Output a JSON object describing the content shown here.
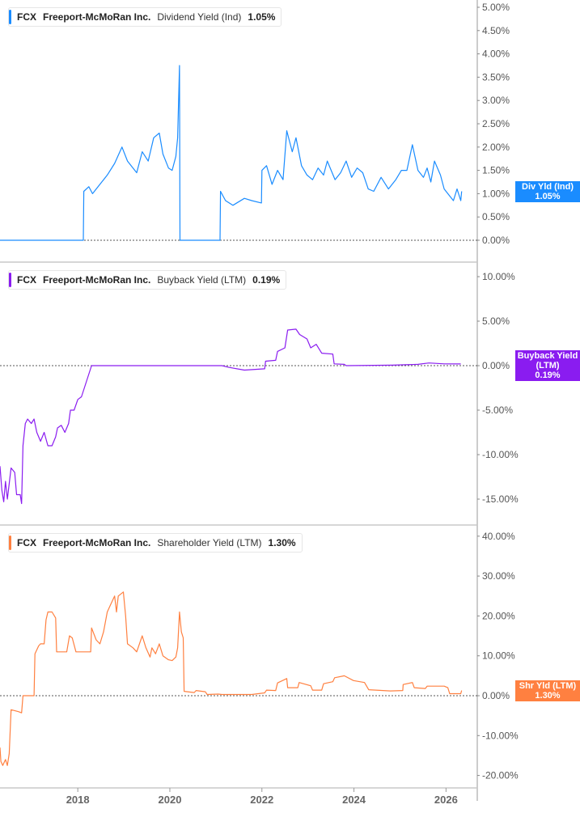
{
  "colors": {
    "dividend": "#1a8cff",
    "buyback": "#8a1cf0",
    "shareholder": "#ff8040",
    "axis": "#bbbbbb",
    "tick_text": "#555555"
  },
  "chart_data": [
    {
      "type": "line",
      "legend": {
        "ticker": "FCX",
        "company": "Freeport-McMoRan Inc.",
        "metric": "Dividend Yield (Ind)",
        "value": "1.05%"
      },
      "badge": {
        "label": "Div Yld (Ind)",
        "value": "1.05%"
      },
      "ylim": [
        -0.5,
        5.1
      ],
      "yticks": [
        "5.00%",
        "4.50%",
        "4.00%",
        "3.50%",
        "3.00%",
        "2.50%",
        "2.00%",
        "1.50%",
        "1.00%",
        "0.50%",
        "0.00%"
      ],
      "ytick_values": [
        5,
        4.5,
        4,
        3.5,
        3,
        2.5,
        2,
        1.5,
        1,
        0.5,
        0
      ],
      "series": [
        {
          "points": [
            [
              2016.31,
              0
            ],
            [
              2018.12,
              0
            ],
            [
              2018.13,
              1.05
            ],
            [
              2018.24,
              1.15
            ],
            [
              2018.32,
              1.0
            ],
            [
              2018.48,
              1.2
            ],
            [
              2018.64,
              1.4
            ],
            [
              2018.8,
              1.65
            ],
            [
              2018.96,
              2.0
            ],
            [
              2019.08,
              1.7
            ],
            [
              2019.2,
              1.55
            ],
            [
              2019.28,
              1.45
            ],
            [
              2019.4,
              1.9
            ],
            [
              2019.53,
              1.7
            ],
            [
              2019.65,
              2.2
            ],
            [
              2019.77,
              2.3
            ],
            [
              2019.85,
              1.85
            ],
            [
              2019.97,
              1.55
            ],
            [
              2020.05,
              1.5
            ],
            [
              2020.13,
              1.8
            ],
            [
              2020.17,
              2.2
            ],
            [
              2020.21,
              3.75
            ],
            [
              2020.22,
              0
            ],
            [
              2021.09,
              0
            ],
            [
              2021.1,
              1.05
            ],
            [
              2021.21,
              0.85
            ],
            [
              2021.37,
              0.75
            ],
            [
              2021.62,
              0.9
            ],
            [
              2021.78,
              0.85
            ],
            [
              2021.99,
              0.8
            ],
            [
              2022.0,
              1.5
            ],
            [
              2022.1,
              1.6
            ],
            [
              2022.22,
              1.2
            ],
            [
              2022.34,
              1.5
            ],
            [
              2022.46,
              1.3
            ],
            [
              2022.54,
              2.35
            ],
            [
              2022.66,
              1.9
            ],
            [
              2022.74,
              2.2
            ],
            [
              2022.86,
              1.6
            ],
            [
              2022.98,
              1.4
            ],
            [
              2023.1,
              1.3
            ],
            [
              2023.22,
              1.55
            ],
            [
              2023.34,
              1.4
            ],
            [
              2023.42,
              1.7
            ],
            [
              2023.59,
              1.3
            ],
            [
              2023.71,
              1.45
            ],
            [
              2023.83,
              1.7
            ],
            [
              2023.95,
              1.35
            ],
            [
              2024.07,
              1.55
            ],
            [
              2024.19,
              1.45
            ],
            [
              2024.31,
              1.1
            ],
            [
              2024.43,
              1.05
            ],
            [
              2024.59,
              1.35
            ],
            [
              2024.75,
              1.1
            ],
            [
              2024.91,
              1.3
            ],
            [
              2025.03,
              1.5
            ],
            [
              2025.15,
              1.5
            ],
            [
              2025.27,
              2.05
            ],
            [
              2025.39,
              1.5
            ],
            [
              2025.51,
              1.35
            ],
            [
              2025.59,
              1.55
            ],
            [
              2025.67,
              1.25
            ],
            [
              2025.75,
              1.7
            ],
            [
              2025.88,
              1.4
            ],
            [
              2025.96,
              1.1
            ],
            [
              2026.08,
              0.95
            ],
            [
              2026.16,
              0.85
            ],
            [
              2026.24,
              1.1
            ],
            [
              2026.32,
              0.85
            ],
            [
              2026.34,
              1.05
            ]
          ]
        }
      ]
    },
    {
      "type": "line",
      "legend": {
        "ticker": "FCX",
        "company": "Freeport-McMoRan Inc.",
        "metric": "Buyback Yield (LTM)",
        "value": "0.19%"
      },
      "badge": {
        "label": "Buyback Yield (LTM)",
        "value": "0.19%"
      },
      "ylim": [
        -17,
        11
      ],
      "yticks": [
        "10.00%",
        "5.00%",
        "0.00%",
        "-5.00%",
        "-10.00%",
        "-15.00%"
      ],
      "ytick_values": [
        10,
        5,
        0,
        -5,
        -10,
        -15
      ],
      "series": [
        {
          "points": [
            [
              2016.31,
              -11.3
            ],
            [
              2016.35,
              -14
            ],
            [
              2016.39,
              -15.3
            ],
            [
              2016.43,
              -13
            ],
            [
              2016.47,
              -15
            ],
            [
              2016.55,
              -11.5
            ],
            [
              2016.63,
              -12
            ],
            [
              2016.67,
              -14.5
            ],
            [
              2016.75,
              -14.5
            ],
            [
              2016.78,
              -15.5
            ],
            [
              2016.81,
              -9
            ],
            [
              2016.86,
              -6.5
            ],
            [
              2016.91,
              -6
            ],
            [
              2016.99,
              -6.5
            ],
            [
              2017.05,
              -6
            ],
            [
              2017.11,
              -7.5
            ],
            [
              2017.19,
              -8.5
            ],
            [
              2017.27,
              -7.5
            ],
            [
              2017.35,
              -9
            ],
            [
              2017.44,
              -9
            ],
            [
              2017.52,
              -8
            ],
            [
              2017.56,
              -7
            ],
            [
              2017.64,
              -6.7
            ],
            [
              2017.72,
              -7.5
            ],
            [
              2017.8,
              -6.5
            ],
            [
              2017.84,
              -5
            ],
            [
              2017.92,
              -5
            ],
            [
              2018.0,
              -3.8
            ],
            [
              2018.08,
              -3.5
            ],
            [
              2018.3,
              0
            ],
            [
              2021.13,
              0
            ],
            [
              2021.29,
              -0.2
            ],
            [
              2021.62,
              -0.5
            ],
            [
              2022.06,
              -0.35
            ],
            [
              2022.08,
              0.5
            ],
            [
              2022.3,
              0.6
            ],
            [
              2022.34,
              1.6
            ],
            [
              2022.5,
              2
            ],
            [
              2022.56,
              4
            ],
            [
              2022.74,
              4.1
            ],
            [
              2022.82,
              3.5
            ],
            [
              2022.98,
              3.0
            ],
            [
              2023.06,
              2.0
            ],
            [
              2023.18,
              2.4
            ],
            [
              2023.3,
              1.4
            ],
            [
              2023.54,
              1.3
            ],
            [
              2023.57,
              0.2
            ],
            [
              2023.79,
              0.15
            ],
            [
              2023.83,
              0
            ],
            [
              2024.83,
              0.05
            ],
            [
              2025.39,
              0.15
            ],
            [
              2025.63,
              0.3
            ],
            [
              2025.96,
              0.2
            ],
            [
              2026.32,
              0.19
            ]
          ]
        }
      ]
    },
    {
      "type": "line",
      "legend": {
        "ticker": "FCX",
        "company": "Freeport-McMoRan Inc.",
        "metric": "Shareholder Yield (LTM)",
        "value": "1.30%"
      },
      "badge": {
        "label": "Shr Yld (LTM)",
        "value": "1.30%"
      },
      "ylim": [
        -23,
        42
      ],
      "yticks": [
        "40.00%",
        "30.00%",
        "20.00%",
        "10.00%",
        "0.00%",
        "-10.00%",
        "-20.00%"
      ],
      "ytick_values": [
        40,
        30,
        20,
        10,
        0,
        -10,
        -20
      ],
      "xticks": [
        "2018",
        "2020",
        "2022",
        "2024",
        "2026"
      ],
      "xtick_values": [
        2018,
        2020,
        2022,
        2024,
        2026
      ],
      "series": [
        {
          "points": [
            [
              2016.31,
              -13
            ],
            [
              2016.33,
              -16.5
            ],
            [
              2016.37,
              -17.5
            ],
            [
              2016.43,
              -16
            ],
            [
              2016.47,
              -17.5
            ],
            [
              2016.51,
              -14.5
            ],
            [
              2016.55,
              -3.5
            ],
            [
              2016.71,
              -4
            ],
            [
              2016.78,
              -4.3
            ],
            [
              2016.81,
              0
            ],
            [
              2017.05,
              0
            ],
            [
              2017.07,
              10.5
            ],
            [
              2017.15,
              12.5
            ],
            [
              2017.19,
              13
            ],
            [
              2017.27,
              13
            ],
            [
              2017.31,
              19
            ],
            [
              2017.35,
              21
            ],
            [
              2017.44,
              21
            ],
            [
              2017.52,
              19.5
            ],
            [
              2017.54,
              11
            ],
            [
              2017.64,
              11
            ],
            [
              2017.76,
              11
            ],
            [
              2017.82,
              15
            ],
            [
              2017.88,
              14.5
            ],
            [
              2017.96,
              11
            ],
            [
              2018.08,
              11
            ],
            [
              2018.2,
              11
            ],
            [
              2018.28,
              11
            ],
            [
              2018.3,
              17
            ],
            [
              2018.4,
              14
            ],
            [
              2018.48,
              13
            ],
            [
              2018.56,
              16
            ],
            [
              2018.64,
              21
            ],
            [
              2018.72,
              23
            ],
            [
              2018.8,
              25
            ],
            [
              2018.84,
              21
            ],
            [
              2018.88,
              25
            ],
            [
              2018.99,
              26
            ],
            [
              2019.04,
              20
            ],
            [
              2019.08,
              13
            ],
            [
              2019.2,
              12
            ],
            [
              2019.28,
              11
            ],
            [
              2019.4,
              15
            ],
            [
              2019.48,
              12
            ],
            [
              2019.57,
              9.7
            ],
            [
              2019.61,
              12
            ],
            [
              2019.69,
              10.5
            ],
            [
              2019.77,
              13
            ],
            [
              2019.85,
              10
            ],
            [
              2019.97,
              9
            ],
            [
              2020.05,
              8.8
            ],
            [
              2020.13,
              9.7
            ],
            [
              2020.17,
              12
            ],
            [
              2020.21,
              21
            ],
            [
              2020.25,
              16
            ],
            [
              2020.29,
              14.5
            ],
            [
              2020.31,
              1.1
            ],
            [
              2020.53,
              0.8
            ],
            [
              2020.57,
              1.3
            ],
            [
              2020.77,
              1
            ],
            [
              2020.81,
              0.3
            ],
            [
              2021.05,
              0.4
            ],
            [
              2021.13,
              0.3
            ],
            [
              2021.78,
              0.3
            ],
            [
              2022.06,
              0.7
            ],
            [
              2022.1,
              1.4
            ],
            [
              2022.3,
              1.3
            ],
            [
              2022.34,
              3.2
            ],
            [
              2022.54,
              4.3
            ],
            [
              2022.56,
              2
            ],
            [
              2022.78,
              2
            ],
            [
              2022.81,
              3.3
            ],
            [
              2023.06,
              2.5
            ],
            [
              2023.1,
              1.4
            ],
            [
              2023.3,
              1.4
            ],
            [
              2023.34,
              3.0
            ],
            [
              2023.54,
              3.5
            ],
            [
              2023.58,
              4.5
            ],
            [
              2023.79,
              5
            ],
            [
              2023.99,
              3.8
            ],
            [
              2024.23,
              3.3
            ],
            [
              2024.32,
              1.5
            ],
            [
              2024.79,
              1.2
            ],
            [
              2025.06,
              1.3
            ],
            [
              2025.07,
              2.8
            ],
            [
              2025.27,
              3.3
            ],
            [
              2025.31,
              2.0
            ],
            [
              2025.55,
              1.8
            ],
            [
              2025.59,
              2.4
            ],
            [
              2025.96,
              2.4
            ],
            [
              2026.04,
              2.0
            ],
            [
              2026.08,
              0.5
            ],
            [
              2026.32,
              0.5
            ],
            [
              2026.34,
              1.3
            ]
          ]
        }
      ]
    }
  ]
}
